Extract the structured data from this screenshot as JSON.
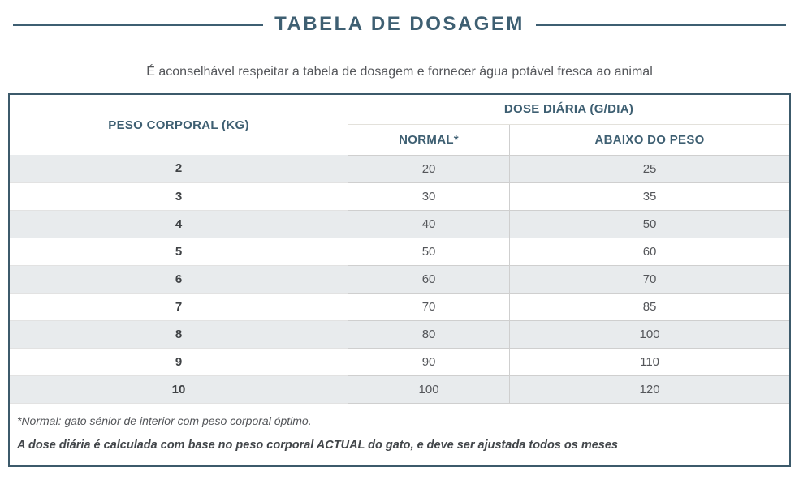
{
  "header": {
    "title": "TABELA DE DOSAGEM",
    "subtitle": "É aconselhável respeitar a tabela de dosagem e fornecer água potável fresca ao animal"
  },
  "dosage_table": {
    "columns": {
      "body_weight": "PESO CORPORAL (KG)",
      "daily_dose_group": "DOSE DIÁRIA (G/DIA)",
      "normal": "NORMAL*",
      "underweight": "ABAIXO DO PESO"
    },
    "rows": [
      {
        "weight_kg": "2",
        "normal_g": "20",
        "underweight_g": "25"
      },
      {
        "weight_kg": "3",
        "normal_g": "30",
        "underweight_g": "35"
      },
      {
        "weight_kg": "4",
        "normal_g": "40",
        "underweight_g": "50"
      },
      {
        "weight_kg": "5",
        "normal_g": "50",
        "underweight_g": "60"
      },
      {
        "weight_kg": "6",
        "normal_g": "60",
        "underweight_g": "70"
      },
      {
        "weight_kg": "7",
        "normal_g": "70",
        "underweight_g": "85"
      },
      {
        "weight_kg": "8",
        "normal_g": "80",
        "underweight_g": "100"
      },
      {
        "weight_kg": "9",
        "normal_g": "90",
        "underweight_g": "110"
      },
      {
        "weight_kg": "10",
        "normal_g": "100",
        "underweight_g": "120"
      }
    ],
    "footnotes": {
      "normal_definition": "*Normal: gato sénior de interior com peso corporal óptimo.",
      "adjustment_note": "A dose diária é calculada com base no peso corporal ACTUAL do gato, e deve ser ajustada todos os meses"
    }
  },
  "colors": {
    "accent": "#3e5f72",
    "table_border": "#3c5a6b",
    "row_alt_bg": "#e8ebed",
    "body_text": "#54565a"
  }
}
